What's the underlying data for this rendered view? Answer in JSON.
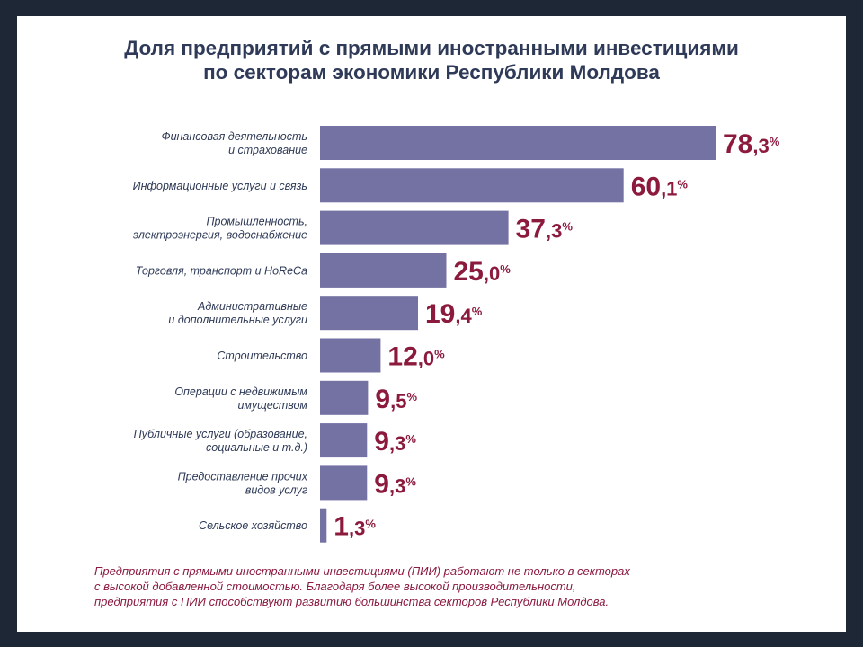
{
  "title_lines": [
    "Доля предприятий с прямыми иностранными инвестициями",
    "по секторам экономики Республики Молдова"
  ],
  "note_lines": [
    "Предприятия с прямыми иностранными инвестициями (ПИИ) работают не только в секторах",
    "с высокой добавленной стоимостью. Благодаря более высокой производительности,",
    "предприятия с ПИИ способствуют развитию большинства секторов Республики Молдова."
  ],
  "colors": {
    "bar": "#7471a3",
    "value_label": "#8b1a3d",
    "title": "#2e3a57",
    "background": "#1d2736"
  },
  "chart_data": {
    "type": "bar",
    "orientation": "horizontal",
    "title": "Доля предприятий с прямыми иностранными инвестициями по секторам экономики Республики Молдова",
    "categories": [
      [
        "Финансовая деятельность",
        "и страхование"
      ],
      [
        "Информационные услуги и связь"
      ],
      [
        "Промышленность,",
        "электроэнергия, водоснабжение"
      ],
      [
        "Торговля, транспорт и HoReCa"
      ],
      [
        "Административные",
        "и дополнительные услуги"
      ],
      [
        "Строительство"
      ],
      [
        "Операции с недвижимым",
        "имуществом"
      ],
      [
        "Публичные услуги (образование,",
        "социальные и т.д.)"
      ],
      [
        "Предоставление прочих",
        "видов услуг"
      ],
      [
        "Сельское хозяйство"
      ]
    ],
    "values": [
      78.3,
      60.1,
      37.3,
      25.0,
      19.4,
      12.0,
      9.5,
      9.3,
      9.3,
      1.3
    ],
    "value_labels": [
      {
        "int": "78",
        "dec": ",3",
        "unit": "%"
      },
      {
        "int": "60",
        "dec": ",1",
        "unit": "%"
      },
      {
        "int": "37",
        "dec": ",3",
        "unit": "%"
      },
      {
        "int": "25",
        "dec": ",0",
        "unit": "%"
      },
      {
        "int": "19",
        "dec": ",4",
        "unit": "%"
      },
      {
        "int": "12",
        "dec": ",0",
        "unit": "%"
      },
      {
        "int": "9",
        "dec": ",5",
        "unit": "%"
      },
      {
        "int": "9",
        "dec": ",3",
        "unit": "%"
      },
      {
        "int": "9",
        "dec": ",3",
        "unit": "%"
      },
      {
        "int": "1",
        "dec": ",3",
        "unit": "%"
      }
    ],
    "xlim": [
      0,
      78.3
    ],
    "grid": false,
    "legend": "none"
  }
}
